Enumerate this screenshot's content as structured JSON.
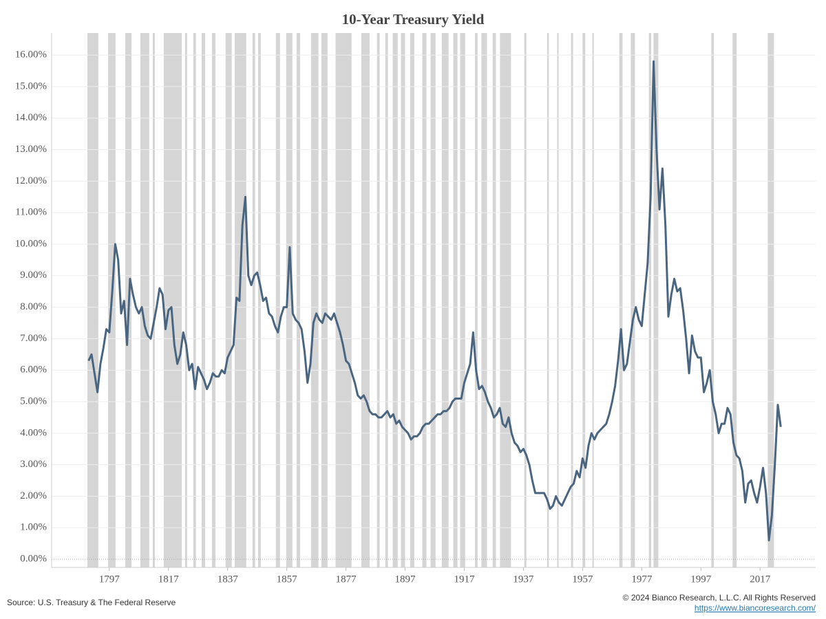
{
  "chart_data": {
    "type": "line",
    "title": "10-Year Treasury Yield",
    "source": "Source: U.S. Treasury & The Federal Reserve",
    "copyright": "© 2024 Bianco Research, L.L.C. All Rights Reserved",
    "link": "https://www.biancoresearch.com/",
    "color": "#4a6580",
    "band_color": "#d5d5d5",
    "grid": true,
    "xlim": [
      1777.5,
      2035.8
    ],
    "ylim": [
      -0.26,
      16.7
    ],
    "xticks": [
      1797,
      1817,
      1837,
      1857,
      1877,
      1897,
      1917,
      1937,
      1957,
      1977,
      1997,
      2017
    ],
    "yticks": [
      {
        "value": 0,
        "label": "0.00%"
      },
      {
        "value": 1,
        "label": "1.00%"
      },
      {
        "value": 2,
        "label": "2.00%"
      },
      {
        "value": 3,
        "label": "3.00%"
      },
      {
        "value": 4,
        "label": "4.00%"
      },
      {
        "value": 5,
        "label": "5.00%"
      },
      {
        "value": 6,
        "label": "6.00%"
      },
      {
        "value": 7,
        "label": "7.00%"
      },
      {
        "value": 8,
        "label": "8.00%"
      },
      {
        "value": 9,
        "label": "9.00%"
      },
      {
        "value": 10,
        "label": "10.00%"
      },
      {
        "value": 11,
        "label": "11.00%"
      },
      {
        "value": 12,
        "label": "12.00%"
      },
      {
        "value": 13,
        "label": "13.00%"
      },
      {
        "value": 14,
        "label": "14.00%"
      },
      {
        "value": 15,
        "label": "15.00%"
      },
      {
        "value": 16,
        "label": "16.00%"
      }
    ],
    "shaded_periods": [
      [
        1789.6,
        1793.3
      ],
      [
        1796.6,
        1799.1
      ],
      [
        1802.4,
        1804.5
      ],
      [
        1807.5,
        1810.5
      ],
      [
        1811.7,
        1812.4
      ],
      [
        1815.4,
        1821.5
      ],
      [
        1822.6,
        1823.3
      ],
      [
        1825.4,
        1826.3
      ],
      [
        1828.2,
        1829.4
      ],
      [
        1831.7,
        1832.9
      ],
      [
        1836.3,
        1838.4
      ],
      [
        1839.4,
        1843.3
      ],
      [
        1845.4,
        1846.3
      ],
      [
        1847.3,
        1848.2
      ],
      [
        1853.3,
        1854.7
      ],
      [
        1856.8,
        1858.9
      ],
      [
        1860.3,
        1861.5
      ],
      [
        1865.2,
        1867.7
      ],
      [
        1868.7,
        1870.8
      ],
      [
        1873.5,
        1878.9
      ],
      [
        1882.2,
        1885
      ],
      [
        1887.5,
        1888.4
      ],
      [
        1890.3,
        1891.2
      ],
      [
        1892.8,
        1894.5
      ],
      [
        1895.6,
        1897
      ],
      [
        1898.7,
        1900.1
      ],
      [
        1902.8,
        1904.2
      ],
      [
        1905.6,
        1907.3
      ],
      [
        1909.4,
        1911.7
      ],
      [
        1913.3,
        1914.7
      ],
      [
        1915.6,
        1917.3
      ],
      [
        1920.6,
        1921.5
      ],
      [
        1922.8,
        1924.7
      ],
      [
        1926.6,
        1927.7
      ],
      [
        1929.1,
        1932.8
      ],
      [
        1937.3,
        1938
      ],
      [
        1945,
        1945.6
      ],
      [
        1948.4,
        1948.9
      ],
      [
        1953.1,
        1953.8
      ],
      [
        1957,
        1957.9
      ],
      [
        1960.3,
        1960.8
      ],
      [
        1969.4,
        1970.5
      ],
      [
        1973.3,
        1974.7
      ],
      [
        1979.4,
        1980.2
      ],
      [
        1981,
        1982.6
      ],
      [
        2000.5,
        2001.4
      ],
      [
        2007.7,
        2009.1
      ],
      [
        2019.6,
        2021.7
      ]
    ],
    "x": [
      1790,
      1791,
      1792,
      1793,
      1794,
      1795,
      1796,
      1797,
      1798,
      1799,
      1800,
      1801,
      1802,
      1803,
      1804,
      1805,
      1806,
      1807,
      1808,
      1809,
      1810,
      1811,
      1812,
      1813,
      1814,
      1815,
      1816,
      1817,
      1818,
      1819,
      1820,
      1821,
      1822,
      1823,
      1824,
      1825,
      1826,
      1827,
      1828,
      1829,
      1830,
      1831,
      1832,
      1833,
      1834,
      1835,
      1836,
      1837,
      1838,
      1839,
      1840,
      1841,
      1842,
      1843,
      1844,
      1845,
      1846,
      1847,
      1848,
      1849,
      1850,
      1851,
      1852,
      1853,
      1854,
      1855,
      1856,
      1857,
      1858,
      1859,
      1860,
      1861,
      1862,
      1863,
      1864,
      1865,
      1866,
      1867,
      1868,
      1869,
      1870,
      1871,
      1872,
      1873,
      1874,
      1875,
      1876,
      1877,
      1878,
      1879,
      1880,
      1881,
      1882,
      1883,
      1884,
      1885,
      1886,
      1887,
      1888,
      1889,
      1890,
      1891,
      1892,
      1893,
      1894,
      1895,
      1896,
      1897,
      1898,
      1899,
      1900,
      1901,
      1902,
      1903,
      1904,
      1905,
      1906,
      1907,
      1908,
      1909,
      1910,
      1911,
      1912,
      1913,
      1914,
      1915,
      1916,
      1917,
      1918,
      1919,
      1920,
      1921,
      1922,
      1923,
      1924,
      1925,
      1926,
      1927,
      1928,
      1929,
      1930,
      1931,
      1932,
      1933,
      1934,
      1935,
      1936,
      1937,
      1938,
      1939,
      1940,
      1941,
      1942,
      1943,
      1944,
      1945,
      1946,
      1947,
      1948,
      1949,
      1950,
      1951,
      1952,
      1953,
      1954,
      1955,
      1956,
      1957,
      1958,
      1959,
      1960,
      1961,
      1962,
      1963,
      1964,
      1965,
      1966,
      1967,
      1968,
      1969,
      1970,
      1971,
      1972,
      1973,
      1974,
      1975,
      1976,
      1977,
      1978,
      1979,
      1980,
      1981,
      1982,
      1983,
      1984,
      1985,
      1986,
      1987,
      1988,
      1989,
      1990,
      1991,
      1992,
      1993,
      1994,
      1995,
      1996,
      1997,
      1998,
      1999,
      2000,
      2001,
      2002,
      2003,
      2004,
      2005,
      2006,
      2007,
      2008,
      2009,
      2010,
      2011,
      2012,
      2013,
      2014,
      2015,
      2016,
      2017,
      2018,
      2019,
      2020,
      2021,
      2022,
      2023,
      2024
    ],
    "values": [
      6.3,
      6.5,
      5.9,
      5.3,
      6.2,
      6.7,
      7.3,
      7.2,
      8.5,
      10.0,
      9.5,
      7.8,
      8.2,
      6.8,
      8.9,
      8.4,
      8.0,
      7.8,
      8.0,
      7.4,
      7.1,
      7.0,
      7.5,
      8.0,
      8.6,
      8.4,
      7.3,
      7.9,
      8.0,
      6.8,
      6.2,
      6.5,
      7.2,
      6.8,
      6.0,
      6.2,
      5.4,
      6.1,
      5.9,
      5.7,
      5.4,
      5.6,
      5.9,
      5.8,
      5.8,
      6.0,
      5.9,
      6.4,
      6.6,
      6.8,
      8.3,
      8.2,
      10.6,
      11.5,
      9.0,
      8.7,
      9.0,
      9.1,
      8.7,
      8.2,
      8.3,
      7.8,
      7.7,
      7.4,
      7.2,
      7.7,
      8.0,
      8.0,
      9.9,
      7.8,
      7.6,
      7.5,
      7.3,
      6.6,
      5.6,
      6.2,
      7.5,
      7.8,
      7.6,
      7.5,
      7.8,
      7.7,
      7.6,
      7.8,
      7.5,
      7.2,
      6.8,
      6.3,
      6.2,
      5.9,
      5.6,
      5.2,
      5.1,
      5.2,
      5.0,
      4.7,
      4.6,
      4.6,
      4.5,
      4.5,
      4.6,
      4.7,
      4.5,
      4.6,
      4.3,
      4.4,
      4.2,
      4.1,
      4.0,
      3.8,
      3.9,
      3.9,
      4.0,
      4.2,
      4.3,
      4.3,
      4.4,
      4.5,
      4.6,
      4.6,
      4.7,
      4.7,
      4.8,
      5.0,
      5.1,
      5.1,
      5.1,
      5.6,
      5.9,
      6.2,
      7.2,
      6.0,
      5.4,
      5.5,
      5.3,
      5.0,
      4.8,
      4.5,
      4.6,
      4.8,
      4.3,
      4.2,
      4.5,
      4.0,
      3.7,
      3.6,
      3.4,
      3.5,
      3.3,
      3.0,
      2.5,
      2.1,
      2.1,
      2.1,
      2.1,
      1.9,
      1.6,
      1.7,
      2.0,
      1.8,
      1.7,
      1.9,
      2.1,
      2.3,
      2.4,
      2.8,
      2.6,
      3.2,
      2.9,
      3.6,
      4.0,
      3.8,
      4.0,
      4.1,
      4.2,
      4.3,
      4.6,
      5.0,
      5.5,
      6.3,
      7.3,
      6.0,
      6.2,
      6.9,
      7.6,
      8.0,
      7.6,
      7.4,
      8.4,
      9.4,
      11.5,
      15.8,
      13.0,
      11.1,
      12.4,
      10.6,
      7.7,
      8.4,
      8.9,
      8.5,
      8.6,
      7.9,
      7.0,
      5.9,
      7.1,
      6.6,
      6.4,
      6.4,
      5.3,
      5.6,
      6.0,
      5.0,
      4.6,
      4.0,
      4.3,
      4.3,
      4.8,
      4.6,
      3.7,
      3.3,
      3.2,
      2.8,
      1.8,
      2.4,
      2.5,
      2.1,
      1.8,
      2.3,
      2.9,
      2.1,
      0.6,
      1.4,
      3.0,
      4.9,
      4.2
    ]
  }
}
